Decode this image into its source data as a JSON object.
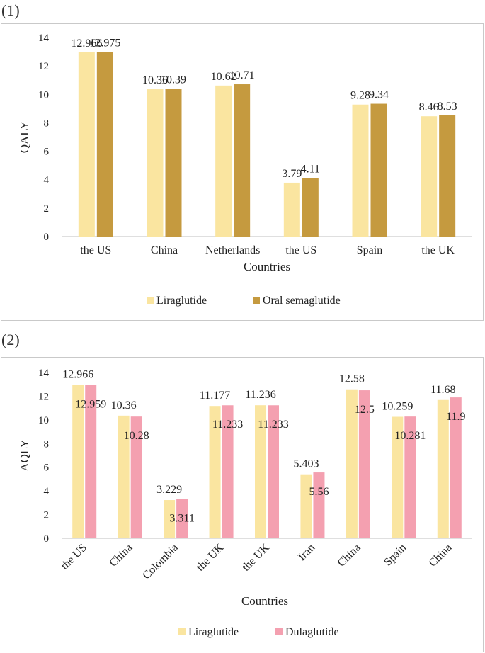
{
  "panel1_label": "(1)",
  "panel2_label": "(2)",
  "chart_data": [
    {
      "type": "bar",
      "categories": [
        "the US",
        "China",
        "Netherlands",
        "the US",
        "Spain",
        "the UK"
      ],
      "series": [
        {
          "name": "Liraglutide",
          "color": "#fae5a0",
          "values": [
            12.966,
            10.36,
            10.62,
            3.79,
            9.28,
            8.46
          ],
          "labels": [
            "12.966",
            "10.36",
            "10.62",
            "3.79",
            "9.28",
            "8.46"
          ]
        },
        {
          "name": "Oral semaglutide",
          "color": "#c59a3f",
          "values": [
            12.975,
            10.39,
            10.71,
            4.11,
            9.34,
            8.53
          ],
          "labels": [
            "12.975",
            "10.39",
            "10.71",
            "4.11",
            "9.34",
            "8.53"
          ]
        }
      ],
      "ylabel": "QALY",
      "xlabel": "Countries",
      "ylim": [
        0,
        14
      ],
      "yticks": [
        "0",
        "2",
        "4",
        "6",
        "8",
        "10",
        "12",
        "14"
      ],
      "grid": false,
      "legend": "bottom"
    },
    {
      "type": "bar",
      "categories": [
        "the US",
        "China",
        "Colombia",
        "the UK",
        "the UK",
        "Iran",
        "China",
        "Spain",
        "China"
      ],
      "series": [
        {
          "name": "Liraglutide",
          "color": "#fae5a0",
          "values": [
            12.966,
            10.36,
            3.229,
            11.177,
            11.236,
            5.403,
            12.58,
            10.259,
            11.68
          ],
          "labels": [
            "12.966",
            "10.36",
            "3.229",
            "11.177",
            "11.236",
            "5.403",
            "12.58",
            "10.259",
            "11.68"
          ]
        },
        {
          "name": "Dulaglutide",
          "color": "#f4a0b0",
          "values": [
            12.959,
            10.28,
            3.311,
            11.233,
            11.233,
            5.56,
            12.5,
            10.281,
            11.9
          ],
          "labels": [
            "12.959",
            "10.28",
            "3.311",
            "11.233",
            "11.233",
            "5.56",
            "12.5",
            "10.281",
            "11.9"
          ]
        }
      ],
      "ylabel": "AQLY",
      "xlabel": "Countries",
      "ylim": [
        0,
        14
      ],
      "yticks": [
        "0",
        "2",
        "4",
        "6",
        "8",
        "10",
        "12",
        "14"
      ],
      "grid": false,
      "legend": "bottom"
    }
  ]
}
